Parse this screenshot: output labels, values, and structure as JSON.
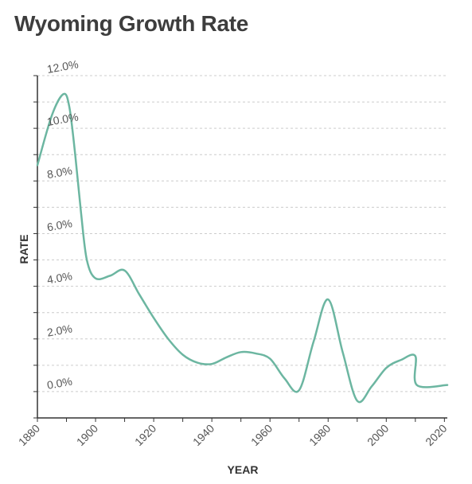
{
  "title": "Wyoming Growth Rate",
  "colors": {
    "line": "#6cb6a1",
    "grid": "#cccccc",
    "axis": "#333333",
    "text": "#555555"
  },
  "chart_data": {
    "type": "line",
    "title": "Wyoming Growth Rate",
    "xlabel": "YEAR",
    "ylabel": "RATE",
    "xlim": [
      1880,
      2021
    ],
    "ylim": [
      -1.0,
      12.0
    ],
    "x_ticks": [
      "1880",
      "1900",
      "1920",
      "1940",
      "1960",
      "1980",
      "2000",
      "2020"
    ],
    "y_ticks": [
      "0.0%",
      "2.0%",
      "4.0%",
      "6.0%",
      "8.0%",
      "10.0%",
      "12.0%"
    ],
    "grid": true,
    "legend": "none",
    "series": [
      {
        "points": [
          [
            1880,
            8.6
          ],
          [
            1885,
            10.5
          ],
          [
            1889,
            11.3
          ],
          [
            1891,
            10.8
          ],
          [
            1893,
            9.0
          ],
          [
            1895,
            6.8
          ],
          [
            1897,
            5.0
          ],
          [
            1900,
            4.3
          ],
          [
            1905,
            4.4
          ],
          [
            1910,
            4.6
          ],
          [
            1915,
            3.7
          ],
          [
            1920,
            2.8
          ],
          [
            1925,
            2.0
          ],
          [
            1930,
            1.4
          ],
          [
            1935,
            1.1
          ],
          [
            1940,
            1.05
          ],
          [
            1945,
            1.3
          ],
          [
            1950,
            1.5
          ],
          [
            1955,
            1.45
          ],
          [
            1960,
            1.25
          ],
          [
            1965,
            0.5
          ],
          [
            1970,
            0.05
          ],
          [
            1975,
            1.9
          ],
          [
            1980,
            3.5
          ],
          [
            1985,
            1.5
          ],
          [
            1990,
            -0.35
          ],
          [
            1995,
            0.2
          ],
          [
            2000,
            0.9
          ],
          [
            2005,
            1.2
          ],
          [
            2010,
            1.35
          ],
          [
            2010.5,
            0.25
          ],
          [
            2021,
            0.25
          ]
        ]
      }
    ]
  }
}
